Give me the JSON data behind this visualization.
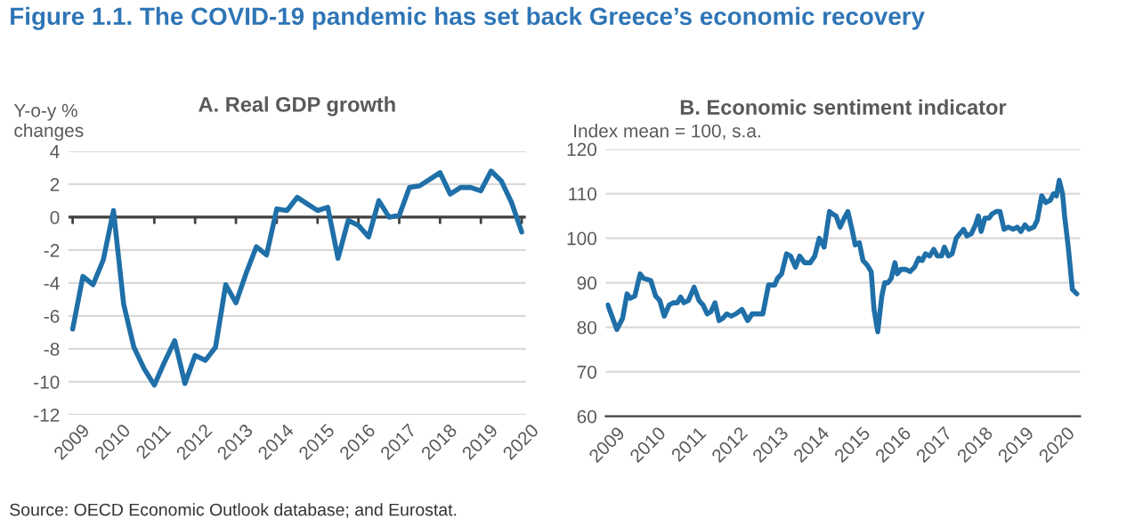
{
  "chart_data": [
    {
      "type": "line",
      "title": "A. Real GDP growth",
      "ylabel": "Y-o-y %\nchanges",
      "annotations": [
        "Figure 1.1. The COVID-19 pandemic has set back Greece’s economic recovery",
        "Source: OECD Economic Outlook database; and Eurostat."
      ],
      "series": [
        {
          "color": "#1f6fa8",
          "x": [
            2009.0,
            2009.25,
            2009.5,
            2009.75,
            2010.0,
            2010.25,
            2010.5,
            2010.75,
            2011.0,
            2011.25,
            2011.5,
            2011.75,
            2012.0,
            2012.25,
            2012.5,
            2012.75,
            2013.0,
            2013.25,
            2013.5,
            2013.75,
            2014.0,
            2014.25,
            2014.5,
            2014.75,
            2015.0,
            2015.25,
            2015.5,
            2015.75,
            2016.0,
            2016.25,
            2016.5,
            2016.75,
            2017.0,
            2017.25,
            2017.5,
            2017.75,
            2018.0,
            2018.25,
            2018.5,
            2018.75,
            2019.0,
            2019.25,
            2019.5,
            2019.75,
            2020.0
          ],
          "values": [
            -6.8,
            -3.6,
            -4.1,
            -2.6,
            0.4,
            -5.3,
            -7.9,
            -9.2,
            -10.2,
            -8.8,
            -7.5,
            -10.1,
            -8.4,
            -8.7,
            -7.9,
            -4.1,
            -5.2,
            -3.4,
            -1.8,
            -2.3,
            0.5,
            0.4,
            1.2,
            0.8,
            0.4,
            0.6,
            -2.5,
            -0.2,
            -0.5,
            -1.2,
            1.0,
            0.0,
            0.1,
            1.8,
            1.9,
            2.3,
            2.7,
            1.4,
            1.8,
            1.8,
            1.6,
            2.8,
            2.2,
            0.9,
            -0.9
          ]
        }
      ],
      "xlim": [
        2008.9,
        2020.1
      ],
      "xticks": [
        2009,
        2010,
        2011,
        2012,
        2013,
        2014,
        2015,
        2016,
        2017,
        2018,
        2019,
        2020
      ],
      "ylim": [
        -12,
        4
      ],
      "yticks": [
        -12,
        -10,
        -8,
        -6,
        -4,
        -2,
        0,
        2,
        4
      ],
      "ref_lines": [
        {
          "axis": "y",
          "value": 0,
          "color": "#404040"
        }
      ],
      "grid": "y",
      "legend": false,
      "line_style": "solid",
      "marker": "none"
    },
    {
      "type": "line",
      "title": "B. Economic sentiment indicator",
      "ylabel": "Index mean = 100, s.a.",
      "series": [
        {
          "color": "#1f6fa8",
          "x": [
            2009.0,
            2009.22,
            2009.36,
            2009.47,
            2009.55,
            2009.66,
            2009.79,
            2009.87,
            2009.95,
            2010.05,
            2010.17,
            2010.27,
            2010.38,
            2010.5,
            2010.6,
            2010.7,
            2010.78,
            2010.86,
            2010.97,
            2011.11,
            2011.23,
            2011.33,
            2011.43,
            2011.52,
            2011.62,
            2011.72,
            2011.81,
            2011.91,
            2012.02,
            2012.13,
            2012.28,
            2012.42,
            2012.53,
            2012.64,
            2012.79,
            2012.93,
            2013.08,
            2013.15,
            2013.25,
            2013.37,
            2013.47,
            2013.59,
            2013.69,
            2013.81,
            2013.95,
            2014.06,
            2014.17,
            2014.29,
            2014.42,
            2014.49,
            2014.58,
            2014.68,
            2014.78,
            2014.87,
            2014.97,
            2015.05,
            2015.15,
            2015.24,
            2015.34,
            2015.44,
            2015.51,
            2015.6,
            2015.7,
            2015.77,
            2015.85,
            2015.93,
            2016.02,
            2016.08,
            2016.17,
            2016.28,
            2016.39,
            2016.5,
            2016.6,
            2016.69,
            2016.77,
            2016.87,
            2016.97,
            2017.06,
            2017.16,
            2017.23,
            2017.33,
            2017.42,
            2017.52,
            2017.61,
            2017.7,
            2017.78,
            2017.89,
            2017.99,
            2018.06,
            2018.13,
            2018.22,
            2018.32,
            2018.4,
            2018.5,
            2018.59,
            2018.69,
            2018.79,
            2018.91,
            2019.01,
            2019.1,
            2019.2,
            2019.3,
            2019.42,
            2019.5,
            2019.61,
            2019.71,
            2019.82,
            2019.9,
            2019.97,
            2020.04,
            2020.12,
            2020.17,
            2020.26,
            2020.36,
            2020.47
          ],
          "values": [
            85,
            79.5,
            82,
            87.5,
            86.5,
            87,
            92,
            91,
            90.8,
            90.5,
            87,
            86,
            82.5,
            85,
            85.5,
            85.5,
            86.8,
            85.5,
            86,
            89,
            86,
            85,
            83,
            83.5,
            85.5,
            81.5,
            82,
            83,
            82.5,
            83,
            84,
            81.5,
            83,
            83,
            83,
            89.5,
            89.5,
            91,
            92,
            96.5,
            96,
            93.5,
            96,
            94.5,
            94.5,
            96,
            100,
            98,
            106,
            105.5,
            105,
            102.5,
            104.5,
            106,
            102,
            98.5,
            99,
            95,
            94,
            92.5,
            84,
            79,
            87,
            90,
            90,
            91,
            94.5,
            92,
            93,
            93,
            92.5,
            93.5,
            95.5,
            95,
            96.5,
            96,
            97.5,
            96,
            96,
            98,
            96,
            96.5,
            100,
            101,
            102,
            100.5,
            101,
            103,
            105,
            101.5,
            104.5,
            104.5,
            105.5,
            106,
            106,
            102,
            102.5,
            102,
            102.5,
            101.5,
            103,
            102,
            102.5,
            104,
            109.5,
            108,
            108.5,
            110,
            109.5,
            113,
            110,
            105,
            98,
            88.5,
            87.5
          ]
        }
      ],
      "xlim": [
        2008.95,
        2020.55
      ],
      "xticks": [
        2009,
        2010,
        2011,
        2012,
        2013,
        2014,
        2015,
        2016,
        2017,
        2018,
        2019,
        2020
      ],
      "ylim": [
        60,
        120
      ],
      "yticks": [
        60,
        70,
        80,
        90,
        100,
        110,
        120
      ],
      "grid": "y",
      "legend": false,
      "line_style": "solid",
      "marker": "none"
    }
  ]
}
